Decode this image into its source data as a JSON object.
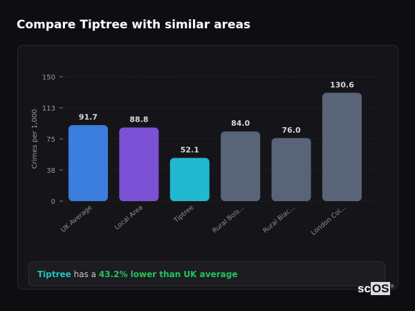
{
  "title": "Compare Tiptree with similar areas",
  "chart_data": {
    "type": "bar",
    "title": "",
    "xlabel": "",
    "ylabel": "Crimes per 1,000",
    "ylim": [
      0,
      150
    ],
    "yticks": [
      "0",
      "38",
      "75",
      "113",
      "150"
    ],
    "ytick_values": [
      0,
      37.5,
      75,
      112.5,
      150
    ],
    "grid": true,
    "categories": [
      "UK Average",
      "Local Area",
      "Tiptree",
      "Rural Bols...",
      "Rural Blac...",
      "London Col..."
    ],
    "values": [
      91.7,
      88.8,
      52.1,
      84.0,
      76.0,
      130.6
    ],
    "labels": [
      "91.7",
      "88.8",
      "52.1",
      "84.0",
      "76.0",
      "130.6"
    ],
    "colors": [
      "#3b7ddd",
      "#7b52d6",
      "#22b8cf",
      "#5a6478",
      "#5a6478",
      "#5a6478"
    ]
  },
  "insight": {
    "area": "Tiptree",
    "middle": " has a ",
    "result": "43.2% lower than UK average"
  },
  "logo": {
    "text_a": "sc",
    "text_b": "OS",
    "mark": "®"
  }
}
